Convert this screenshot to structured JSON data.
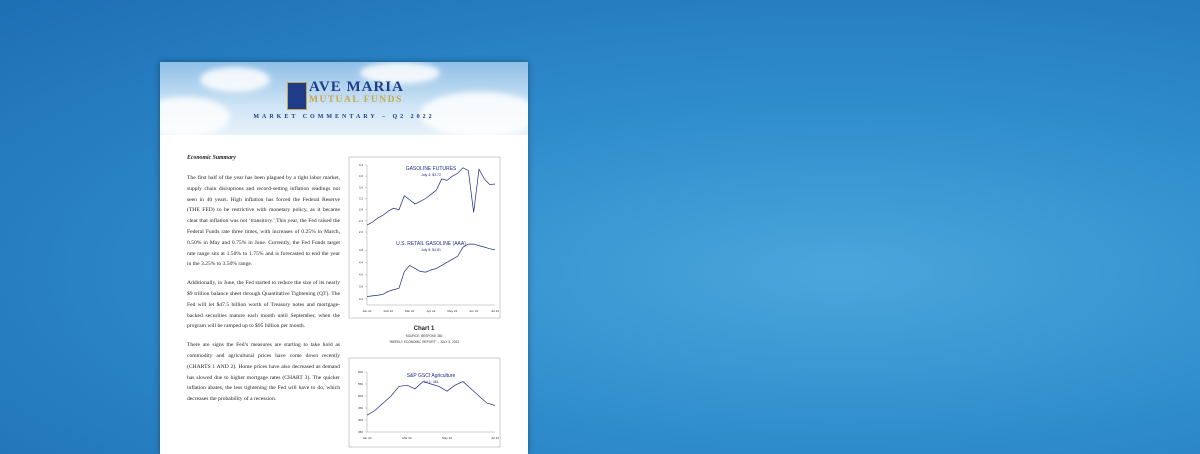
{
  "header": {
    "brand_line1": "AVE MARIA",
    "brand_line2": "MUTUAL FUNDS",
    "subtitle": "MARKET COMMENTARY – Q2 2022"
  },
  "body": {
    "heading": "Economic Summary",
    "paragraphs": [
      "The first half of the year has been plagued by a tight labor market, supply chain disruptions and record-setting inflation readings not seen in 40 years. High inflation has forced the Federal Reserve (THE FED) to be restrictive with monetary policy, as it became clear that inflation was not ‘transitory.’ This year, the Fed raised the Federal Funds rate three times, with increases of 0.25% in March, 0.50% in May and 0.75% in June. Currently, the Fed Funds target rate range sits at 1.50% to 1.75% and is forecasted to end the year in the 3.25% to 3.50% range.",
      "Additionally, in June, the Fed started to reduce the size of its nearly $9 trillion balance sheet through Quantitative Tightening (QT). The Fed will let $47.5 billion worth of Treasury notes and mortgage-backed securities mature each month until September, when the program will be ramped up to $95 billion per month.",
      "There are signs the Fed’s measures are starting to take hold as commodity and agricultural prices have come down recently (CHARTS 1 AND 2). Home prices have also decreased as demand has slowed due to higher mortgage rates (CHART 3). The quicker inflation abates, the less tightening the Fed will have to do, which decreases the probability of a recession."
    ]
  },
  "charts": [
    {
      "type": "line",
      "caption": "Chart 1",
      "source": "SOURCE: BESPOKE 360",
      "source_detail": "“WEEKLY ECONOMIC REPORT” – JULY 5, 2022",
      "categories": [
        "Jan 22",
        null,
        null,
        null,
        "Feb 22",
        null,
        null,
        null,
        "Mar 22",
        null,
        null,
        null,
        "Apr 22",
        null,
        null,
        null,
        "May 22",
        null,
        null,
        null,
        "Jun 22",
        null,
        null,
        null,
        "Jul 22"
      ],
      "panels": [
        {
          "title": "GASOLINE FUTURES",
          "subtitle": "July 4: $3.72",
          "color": "#1a2a8a",
          "ylim": [
            2.0,
            4.4
          ],
          "yticks": [
            {
              "value": 2,
              "label": "2.0"
            },
            2.4,
            2.8,
            3.2,
            3.6,
            {
              "value": 4,
              "label": "4.0"
            },
            4.4
          ],
          "values": [
            2.25,
            2.35,
            2.5,
            2.6,
            2.75,
            2.85,
            2.8,
            3.3,
            3.15,
            3.0,
            3.1,
            3.2,
            3.35,
            3.5,
            3.9,
            3.85,
            4.0,
            4.1,
            4.3,
            4.2,
            2.7,
            4.25,
            3.9,
            3.7,
            3.72
          ]
        },
        {
          "title": "U.S. RETAIL GASOLINE (AAA)",
          "subtitle": "July 5: $4.81",
          "color": "#1a2a8a",
          "ylim": [
            3.0,
            5.2
          ],
          "yticks": [
            3.2,
            3.6,
            {
              "value": 4,
              "label": "4.0"
            },
            4.4,
            4.8
          ],
          "values": [
            3.28,
            3.3,
            3.32,
            3.35,
            3.45,
            3.5,
            3.55,
            4.1,
            4.3,
            4.2,
            4.1,
            4.08,
            4.15,
            4.2,
            4.3,
            4.4,
            4.5,
            4.6,
            4.9,
            5.0,
            5.0,
            4.95,
            4.9,
            4.85,
            4.81
          ]
        }
      ]
    },
    {
      "type": "line",
      "categories": [
        "Jan 22",
        null,
        null,
        null,
        null,
        "Mar 22",
        null,
        null,
        null,
        null,
        "May 22",
        null,
        null,
        null,
        null,
        null,
        "Jul 22"
      ],
      "panels": [
        {
          "title": "S&P GSCI Agriculture",
          "subtitle": "Jul 1: 461",
          "color": "#1a2a8a",
          "ylim": [
            350,
            600
          ],
          "yticks": [
            350,
            400,
            450,
            500,
            550,
            600
          ],
          "values": [
            420,
            440,
            470,
            500,
            540,
            545,
            530,
            560,
            550,
            540,
            520,
            545,
            560,
            530,
            500,
            470,
            461
          ]
        }
      ]
    }
  ]
}
